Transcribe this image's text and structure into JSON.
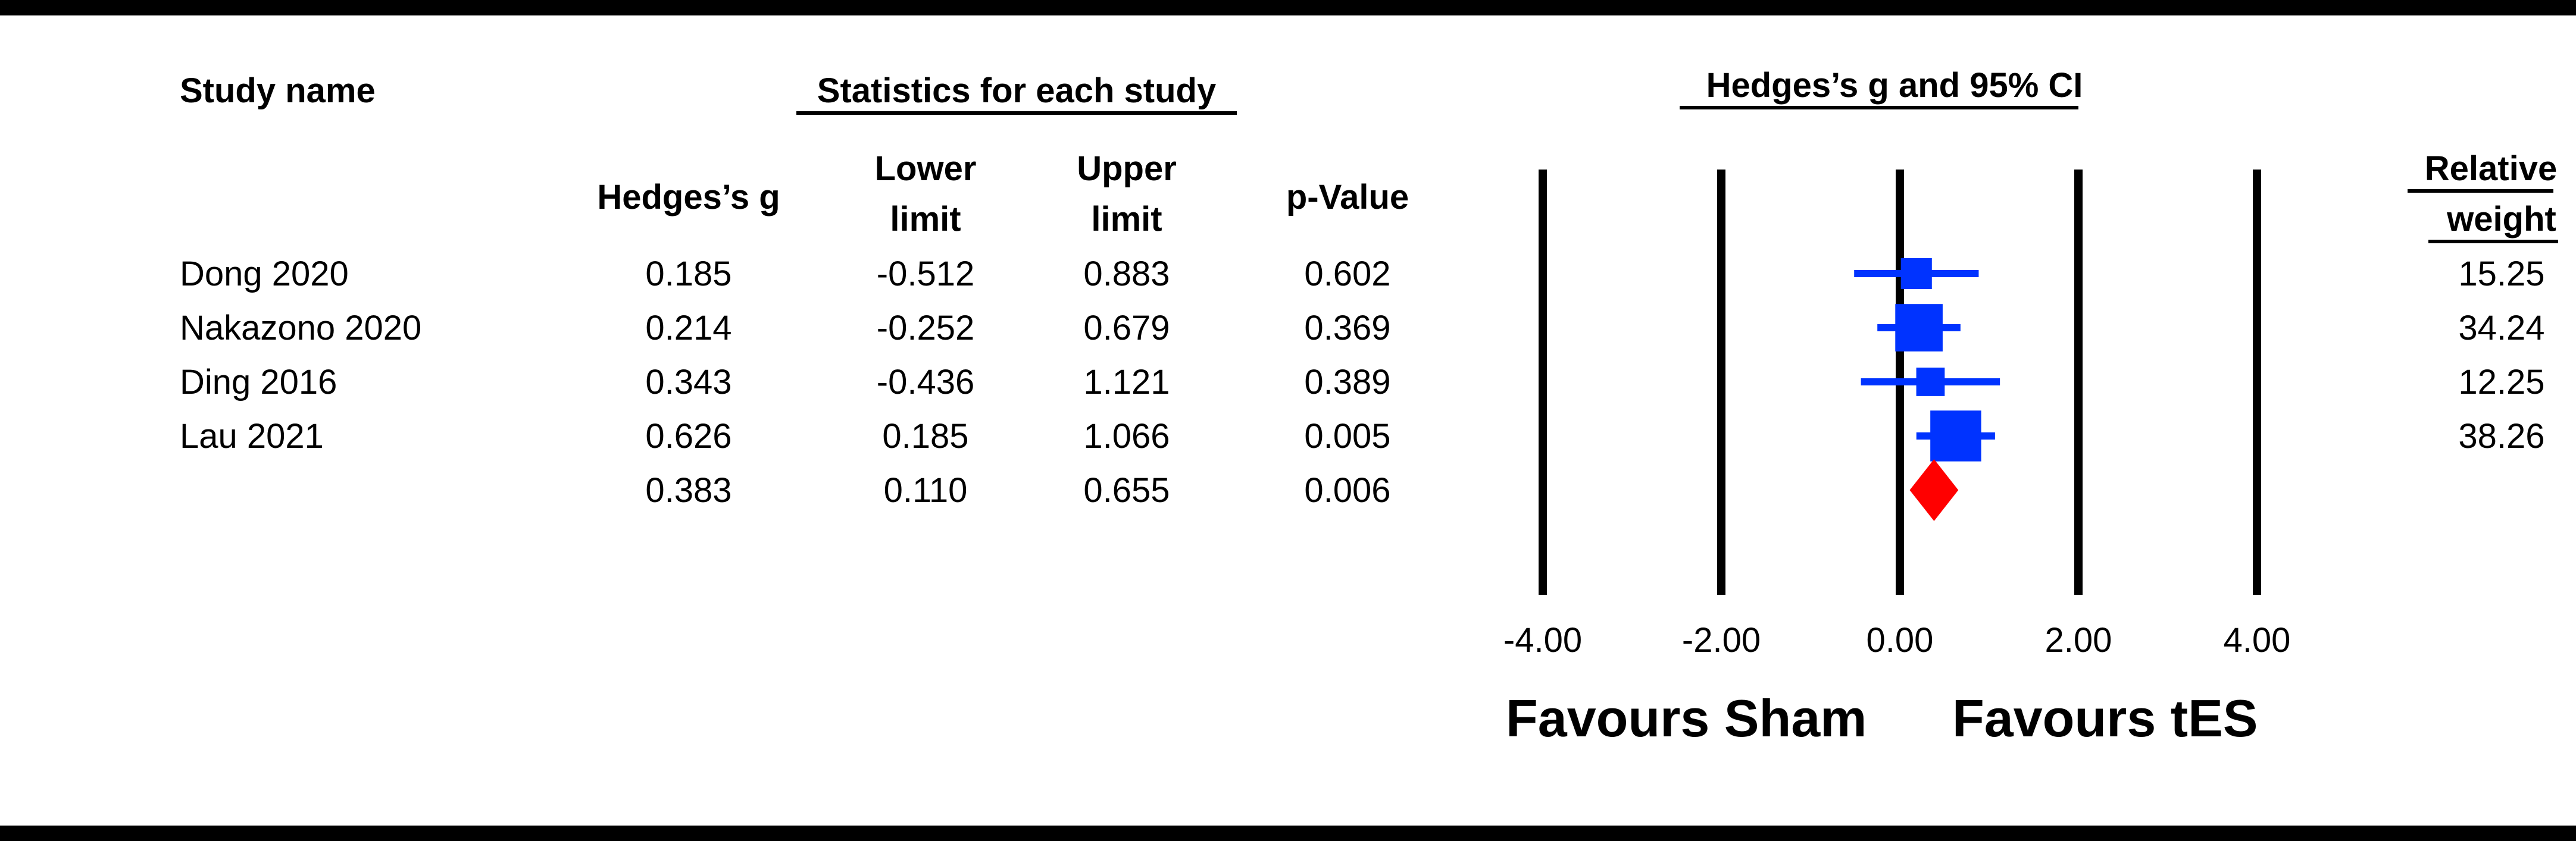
{
  "headers": {
    "study_name": "Study name",
    "stats_group": "Statistics for each study",
    "plot_group": "Hedges’s g and 95% CI",
    "hedges_g": "Hedges’s g",
    "lower_1": "Lower",
    "lower_2": "limit",
    "upper_1": "Upper",
    "upper_2": "limit",
    "pvalue": "p-Value",
    "weight_1": "Relative",
    "weight_2": "weight"
  },
  "footer": {
    "favours_left": "Favours Sham",
    "favours_right": "Favours tES"
  },
  "chart_data": {
    "type": "forest",
    "xlim": [
      -4,
      4
    ],
    "ticks": [
      -4,
      -2,
      0,
      2,
      4
    ],
    "tick_labels": [
      "-4.00",
      "-2.00",
      "0.00",
      "2.00",
      "4.00"
    ],
    "colors": {
      "study": "#0033ff",
      "summary": "#ff0000",
      "axis": "#000000"
    },
    "studies": [
      {
        "name": "Dong 2020",
        "g": 0.185,
        "lower": -0.512,
        "upper": 0.883,
        "g_text": "0.185",
        "lower_text": "-0.512",
        "upper_text": "0.883",
        "p_text": "0.602",
        "weight": 15.25,
        "weight_text": "15.25"
      },
      {
        "name": "Nakazono 2020",
        "g": 0.214,
        "lower": -0.252,
        "upper": 0.679,
        "g_text": "0.214",
        "lower_text": "-0.252",
        "upper_text": "0.679",
        "p_text": "0.369",
        "weight": 34.24,
        "weight_text": "34.24"
      },
      {
        "name": "Ding 2016",
        "g": 0.343,
        "lower": -0.436,
        "upper": 1.121,
        "g_text": "0.343",
        "lower_text": "-0.436",
        "upper_text": "1.121",
        "p_text": "0.389",
        "weight": 12.25,
        "weight_text": "12.25"
      },
      {
        "name": "Lau 2021",
        "g": 0.626,
        "lower": 0.185,
        "upper": 1.066,
        "g_text": "0.626",
        "lower_text": "0.185",
        "upper_text": "1.066",
        "p_text": "0.005",
        "weight": 38.26,
        "weight_text": "38.26"
      }
    ],
    "summary": {
      "g": 0.383,
      "lower": 0.11,
      "upper": 0.655,
      "g_text": "0.383",
      "lower_text": "0.110",
      "upper_text": "0.655",
      "p_text": "0.006"
    }
  }
}
